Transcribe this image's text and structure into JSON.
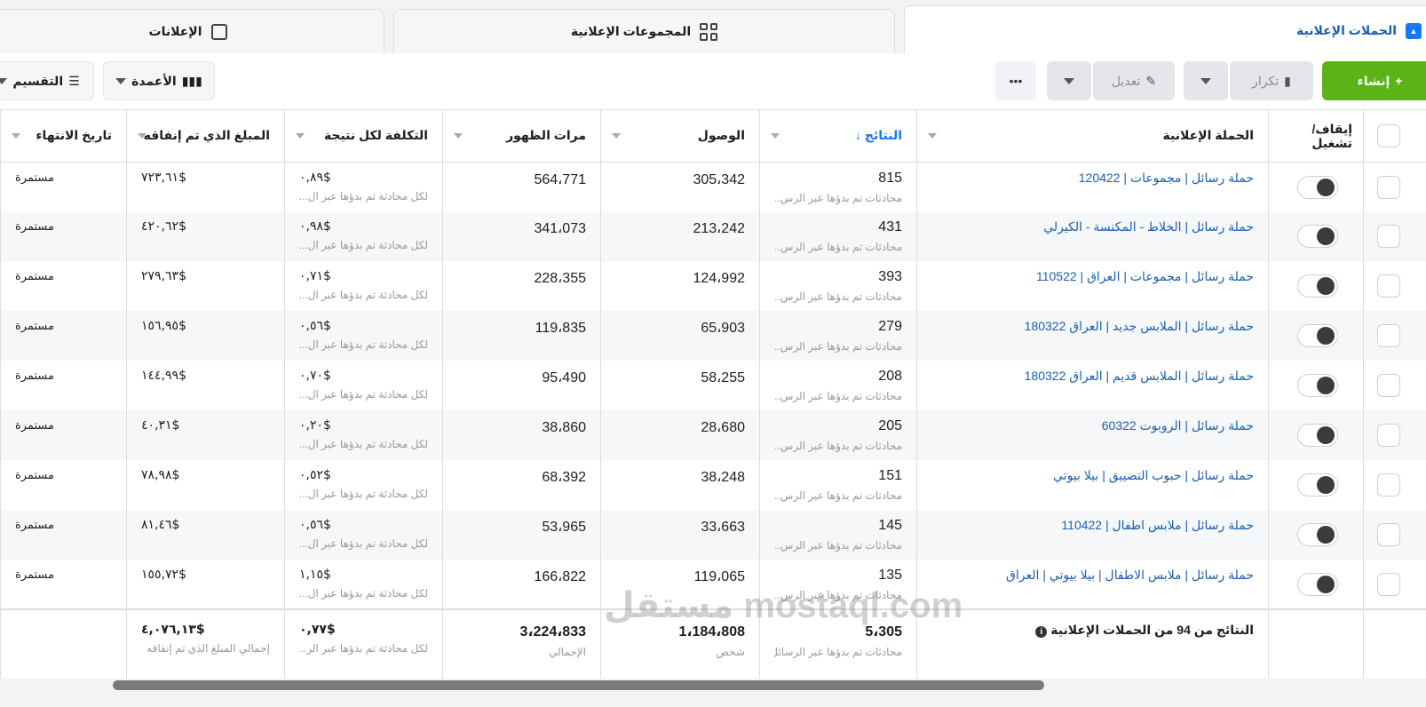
{
  "tabs": {
    "campaigns": "الحملات الإعلانية",
    "adsets": "المجموعات الإعلانية",
    "ads": "الإعلانات"
  },
  "toolbar": {
    "create": "إنشاء",
    "duplicate": "تكرار",
    "edit": "تعديل",
    "more": "•••",
    "columns": "الأعمدة",
    "breakdown": "التقسيم"
  },
  "headers": {
    "toggle": "إيقاف/ تشغيل",
    "campaign": "الحملة الإعلانية",
    "results": "النتائج ↓",
    "reach": "الوصول",
    "impressions": "مرات الظهور",
    "cost": "التكلفة لكل نتيجة",
    "spent": "المبلغ الذي تم إنفاقه",
    "end": "تاريخ الانتهاء"
  },
  "results_sub": "محادثات تم بدؤها عبر الرس...",
  "cost_sub": "لكل محادثة تم بدؤها عبر ال...",
  "rows": [
    {
      "name": "حملة رسائل | مجموعات | 120422",
      "results": "815",
      "reach": "305،342",
      "impressions": "564،771",
      "cost": "٠,٨٩$",
      "spent": "٧٢٣,٦١$",
      "end": "مستمرة"
    },
    {
      "name": "حملة رسائل | الخلاط - المكنسة - الكيرلي",
      "results": "431",
      "reach": "213،242",
      "impressions": "341،073",
      "cost": "٠,٩٨$",
      "spent": "٤٢٠,٦٢$",
      "end": "مستمرة"
    },
    {
      "name": "حملة رسائل | مجموعات | العراق | 110522",
      "results": "393",
      "reach": "124،992",
      "impressions": "228،355",
      "cost": "٠,٧١$",
      "spent": "٢٧٩,٦٣$",
      "end": "مستمرة"
    },
    {
      "name": "حملة رسائل | الملابس جديد | العراق 180322",
      "results": "279",
      "reach": "65،903",
      "impressions": "119،835",
      "cost": "٠,٥٦$",
      "spent": "١٥٦,٩٥$",
      "end": "مستمرة"
    },
    {
      "name": "حملة رسائل | الملابس قديم | العراق 180322",
      "results": "208",
      "reach": "58،255",
      "impressions": "95،490",
      "cost": "٠,٧٠$",
      "spent": "١٤٤,٩٩$",
      "end": "مستمرة"
    },
    {
      "name": "حملة رسائل | الروبوت 60322",
      "results": "205",
      "reach": "28،680",
      "impressions": "38،860",
      "cost": "٠,٢٠$",
      "spent": "٤٠,٣١$",
      "end": "مستمرة"
    },
    {
      "name": "حملة رسائل | حبوب التضييق | بيلا بيوتي",
      "results": "151",
      "reach": "38،248",
      "impressions": "68،392",
      "cost": "٠,٥٢$",
      "spent": "٧٨,٩٨$",
      "end": "مستمرة"
    },
    {
      "name": "حملة رسائل | ملابس اطفال | 110422",
      "results": "145",
      "reach": "33،663",
      "impressions": "53،965",
      "cost": "٠,٥٦$",
      "spent": "٨١,٤٦$",
      "end": "مستمرة"
    },
    {
      "name": "حملة رسائل | ملابس الاطفال | بيلا بيوتي | العراق",
      "results": "135",
      "reach": "119،065",
      "impressions": "166،822",
      "cost": "١,١٥$",
      "spent": "١٥٥,٧٢$",
      "end": "مستمرة"
    }
  ],
  "footer": {
    "label": "النتائج من 94 من الحملات الإعلانية",
    "results": "5،305",
    "results_sub": "محادثات تم بدؤها عبر الرسائل",
    "reach": "1،184،808",
    "reach_sub": "شخص",
    "impressions": "3،224،833",
    "impressions_sub": "الإجمالي",
    "cost": "٠,٧٧$",
    "cost_sub": "لكل محادثة تم بدؤها عبر الر...",
    "spent": "٤,٠٧٦,١٣$",
    "spent_sub": "إجمالي المبلغ الذي تم إنفاقه"
  },
  "watermark": "مستقل mostaql.com",
  "colors": {
    "accent": "#1877f2",
    "create": "#5bb318",
    "link": "#1a5fb4"
  }
}
